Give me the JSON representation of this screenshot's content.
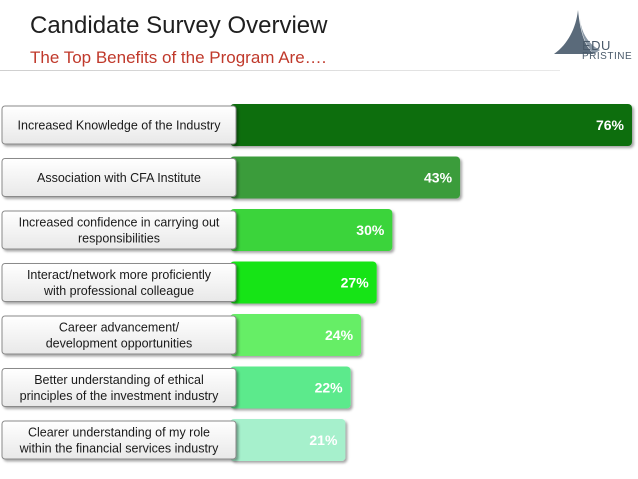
{
  "header": {
    "title": "Candidate Survey Overview",
    "subtitle": "The Top Benefits of the Program Are….",
    "logo_line1": "EDU",
    "logo_line2": "PRISTINE"
  },
  "chart_data": {
    "type": "bar",
    "orientation": "horizontal",
    "unit": "%",
    "categories": [
      [
        "Increased Knowledge of the Industry"
      ],
      [
        "Association with CFA Institute"
      ],
      [
        "Increased confidence in carrying out",
        "responsibilities"
      ],
      [
        "Interact/network more proficiently",
        "with professional colleague"
      ],
      [
        "Career advancement/",
        "development opportunities"
      ],
      [
        "Better understanding of ethical",
        "principles of the investment industry"
      ],
      [
        "Clearer understanding of my role",
        "within the financial services industry"
      ]
    ],
    "values": [
      76,
      43,
      30,
      27,
      24,
      22,
      21
    ],
    "value_labels": [
      "76%",
      "43%",
      "30%",
      "27%",
      "24%",
      "22%",
      "21%"
    ],
    "colors": [
      "#0e6e0e",
      "#3a9c3a",
      "#3ad43a",
      "#18e418",
      "#66ee66",
      "#5bea8c",
      "#a6f0cc"
    ],
    "grid": false,
    "legend": "none"
  }
}
